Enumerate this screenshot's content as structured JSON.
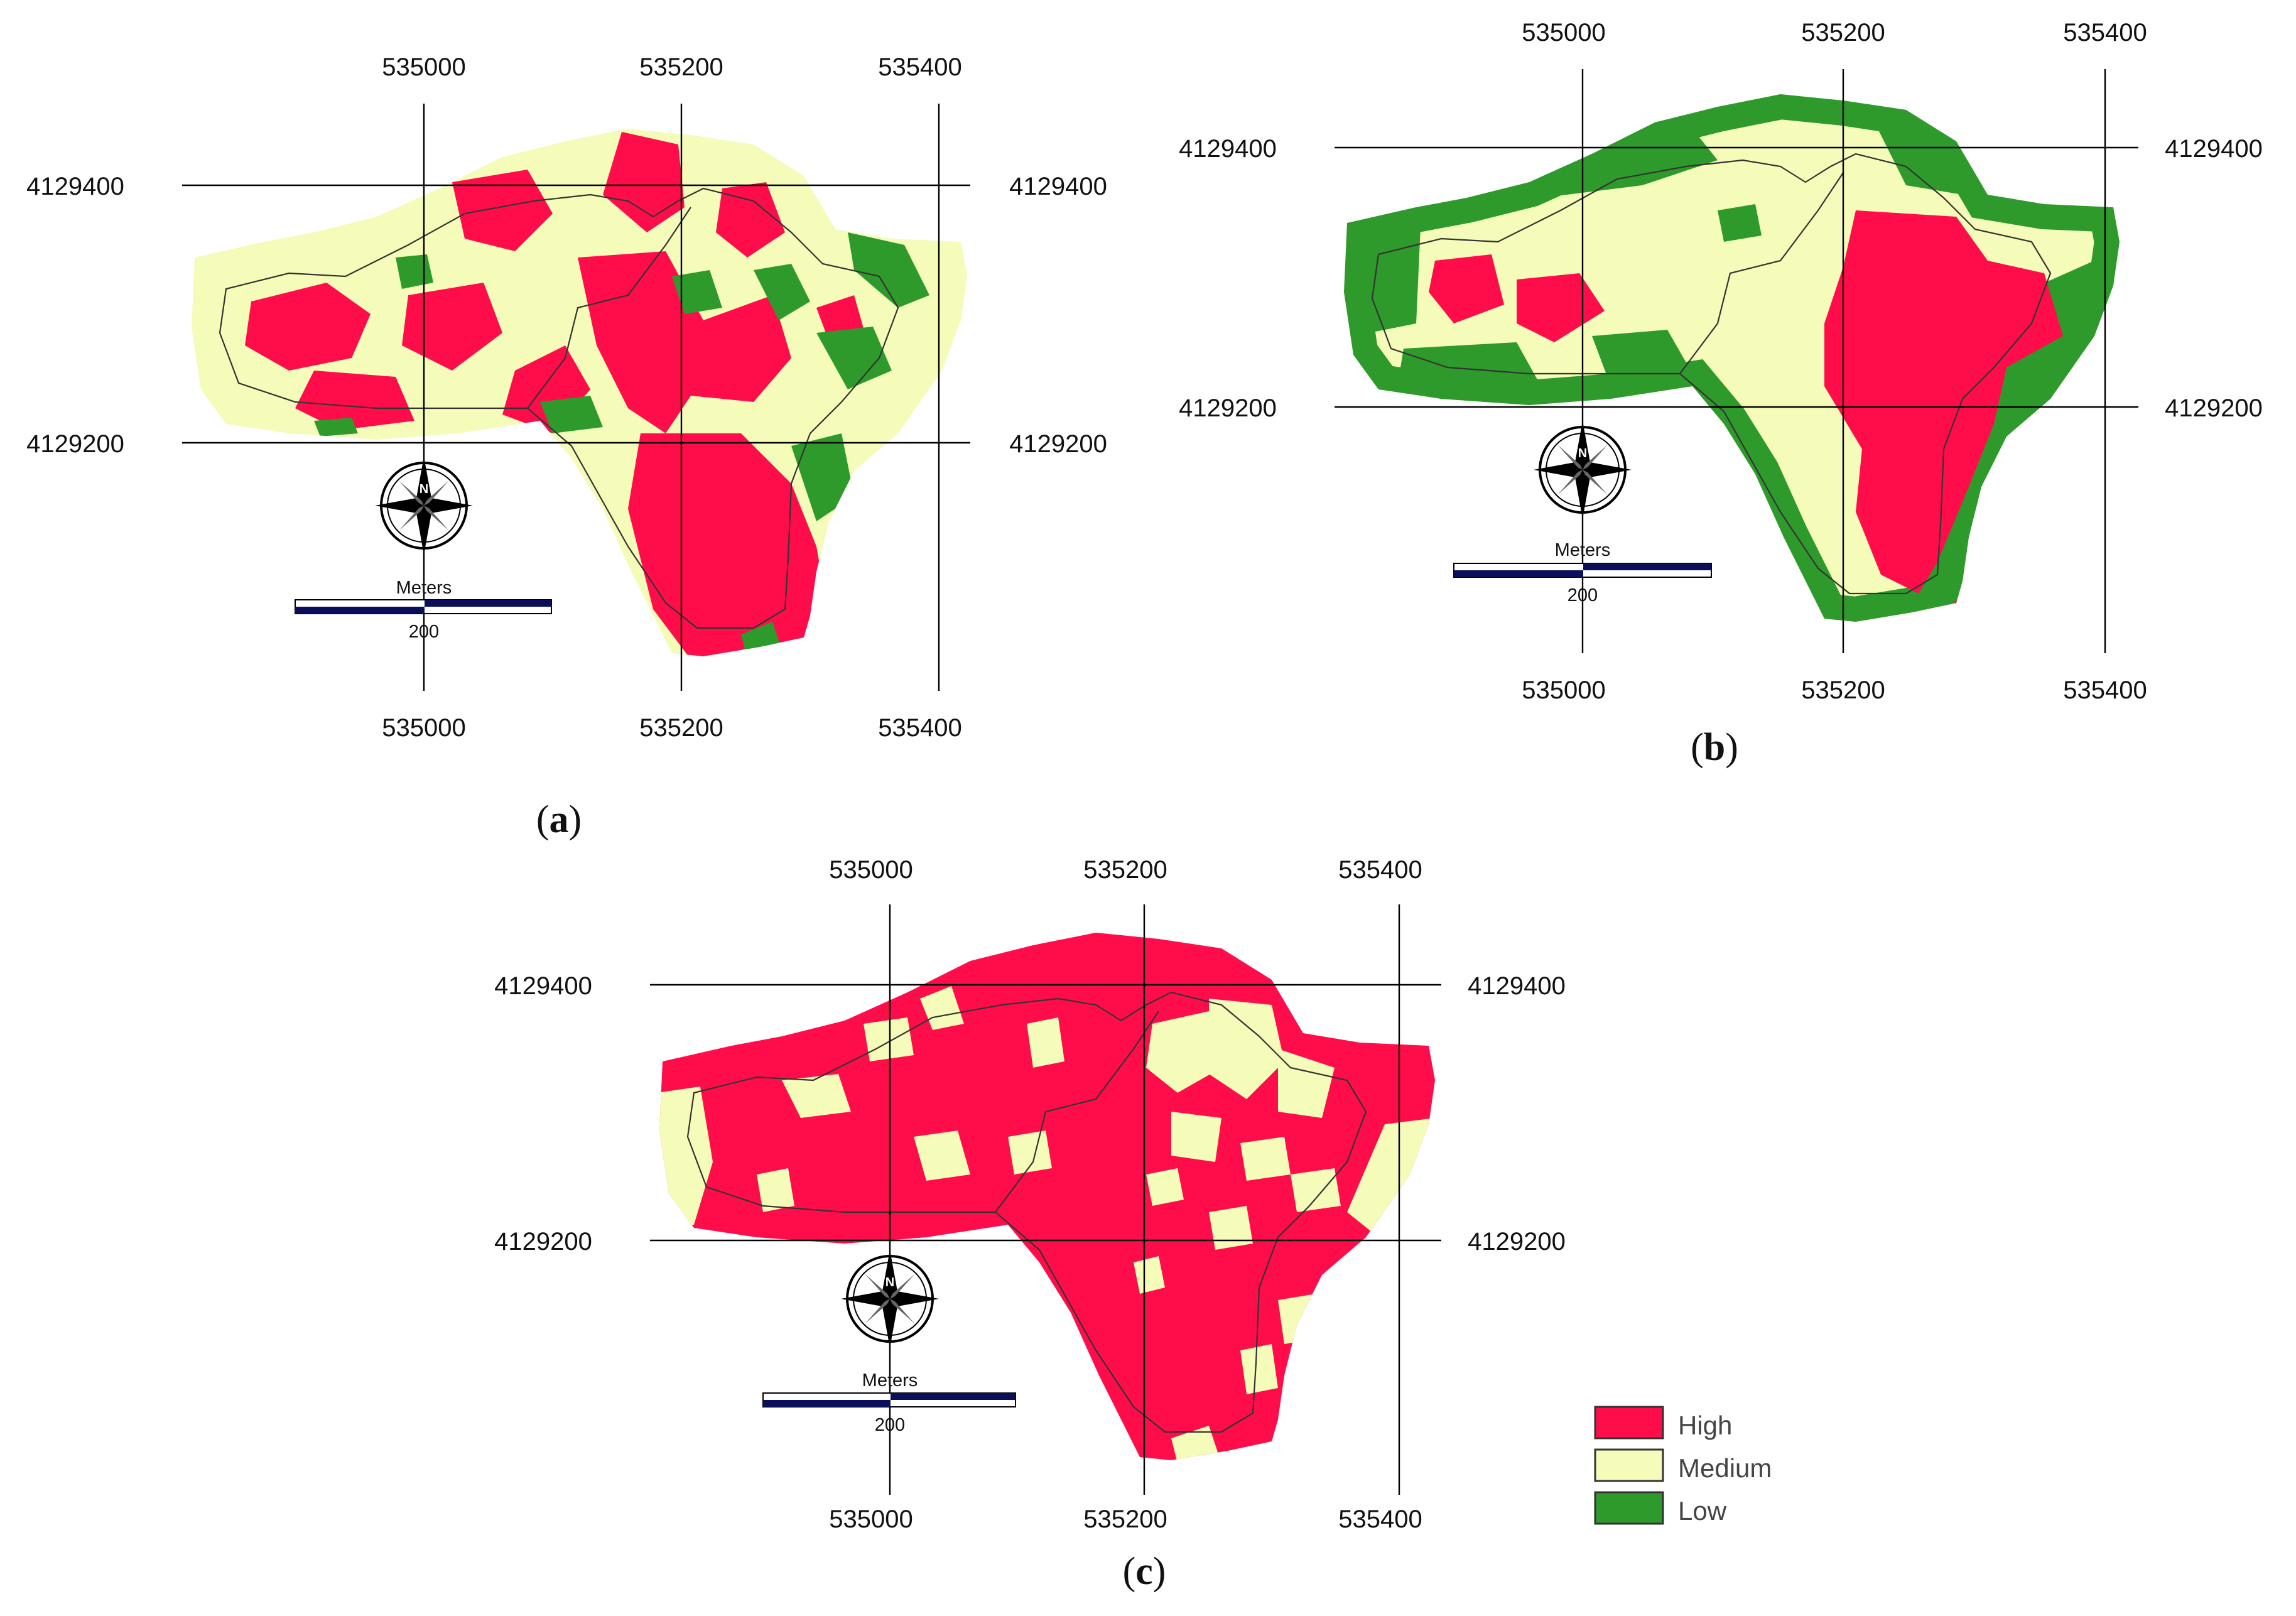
{
  "colors": {
    "high": "#ff0d4a",
    "medium": "#f5fbb8",
    "low": "#2e9a2c",
    "bar_dark": "#0b0f5a"
  },
  "panels": [
    {
      "id": "a",
      "label_open": "(",
      "label_letter": "a",
      "label_close": ")",
      "x_labels": [
        "535000",
        "535200",
        "535400"
      ],
      "y_labels": [
        "4129400",
        "4129200"
      ],
      "north_letter": "N",
      "scale_label": "Meters",
      "scale_value": "200"
    },
    {
      "id": "b",
      "label_open": "(",
      "label_letter": "b",
      "label_close": ")",
      "x_labels": [
        "535000",
        "535200",
        "535400"
      ],
      "y_labels": [
        "4129400",
        "4129200"
      ],
      "north_letter": "N",
      "scale_label": "Meters",
      "scale_value": "200"
    },
    {
      "id": "c",
      "label_open": "(",
      "label_letter": "c",
      "label_close": ")",
      "x_labels": [
        "535000",
        "535200",
        "535400"
      ],
      "y_labels": [
        "4129400",
        "4129200"
      ],
      "north_letter": "N",
      "scale_label": "Meters",
      "scale_value": "200"
    }
  ],
  "legend": [
    {
      "label": "High",
      "color_key": "high"
    },
    {
      "label": "Medium",
      "color_key": "medium"
    },
    {
      "label": "Low",
      "color_key": "low"
    }
  ]
}
